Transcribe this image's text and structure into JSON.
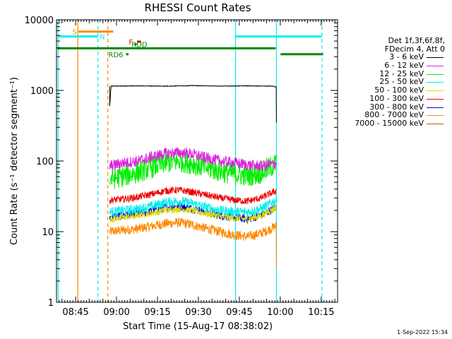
{
  "chart_data": {
    "type": "line",
    "title": "RHESSI Count Rates",
    "xlabel": "Start Time (15-Aug-17 08:38:02)",
    "ylabel": "Count Rate (s⁻¹ detector segment⁻¹)",
    "x_unit": "minutes after 08:38:02",
    "xlim": [
      0,
      103
    ],
    "ylim": [
      1,
      10000
    ],
    "yscale": "log",
    "x_ticks": [
      "08:45",
      "09:00",
      "09:15",
      "09:30",
      "09:45",
      "10:00",
      "10:15"
    ],
    "x_tick_minutes": [
      7,
      22,
      37,
      52,
      67,
      82,
      97
    ],
    "y_ticks": [
      "1",
      "10",
      "100",
      "1000",
      "10000"
    ],
    "legend": {
      "header_line1": "Det 1f,3f,6f,8f,",
      "header_line2": "FDecim 4, Att 0",
      "entries": [
        {
          "label": "3 - 6 keV",
          "color": "#000000"
        },
        {
          "label": "6 - 12 keV",
          "color": "#e020e0"
        },
        {
          "label": "12 - 25 keV",
          "color": "#00ee00"
        },
        {
          "label": "25 - 50 keV",
          "color": "#00eeee"
        },
        {
          "label": "50 - 100 keV",
          "color": "#dddd00"
        },
        {
          "label": "100 - 300 keV",
          "color": "#ee0000"
        },
        {
          "label": "300 - 800 keV",
          "color": "#0000dd"
        },
        {
          "label": "800 - 7000 keV",
          "color": "#ff8800"
        },
        {
          "label": "7000 - 15000 keV",
          "color": "#aa6600"
        }
      ]
    },
    "series": [
      {
        "name": "3 - 6 keV",
        "color": "#000000",
        "x": [
          19.5,
          20,
          30,
          40,
          50,
          60,
          70,
          79,
          80.5,
          80.6
        ],
        "y": [
          600,
          1150,
          1160,
          1150,
          1170,
          1150,
          1160,
          1150,
          1120,
          350
        ]
      },
      {
        "name": "6 - 12 keV",
        "color": "#e020e0",
        "x": [
          19.5,
          25,
          30,
          35,
          40,
          45,
          50,
          55,
          60,
          65,
          70,
          75,
          80.5
        ],
        "y": [
          85,
          95,
          100,
          115,
          128,
          132,
          125,
          110,
          100,
          95,
          88,
          85,
          92
        ]
      },
      {
        "name": "12 - 25 keV",
        "color": "#00ee00",
        "x": [
          19.5,
          25,
          30,
          35,
          40,
          45,
          50,
          55,
          60,
          65,
          70,
          75,
          80.5
        ],
        "y": [
          55,
          62,
          70,
          82,
          95,
          100,
          92,
          80,
          72,
          66,
          62,
          68,
          92
        ]
      },
      {
        "name": "25 - 50 keV",
        "color": "#00eeee",
        "x": [
          19.5,
          25,
          30,
          35,
          40,
          45,
          50,
          55,
          60,
          65,
          70,
          75,
          80.5
        ],
        "y": [
          19,
          20,
          21,
          23,
          26,
          27,
          25,
          22,
          20,
          19,
          19,
          21,
          28
        ]
      },
      {
        "name": "50 - 100 keV",
        "color": "#dddd00",
        "x": [
          19.5,
          25,
          30,
          35,
          40,
          45,
          50,
          55,
          60,
          65,
          70,
          75,
          80.5
        ],
        "y": [
          15,
          16,
          17,
          18.5,
          20,
          21,
          20,
          18,
          16.5,
          15.5,
          15,
          17,
          22
        ]
      },
      {
        "name": "100 - 300 keV",
        "color": "#ee0000",
        "x": [
          19.5,
          25,
          30,
          35,
          40,
          45,
          50,
          55,
          60,
          65,
          70,
          75,
          80.5
        ],
        "y": [
          28,
          29,
          31,
          34,
          38,
          39,
          36,
          33,
          30,
          28,
          27,
          30,
          38
        ]
      },
      {
        "name": "300 - 800 keV",
        "color": "#0000dd",
        "x": [
          19.5,
          25,
          30,
          35,
          40,
          45,
          50,
          55,
          60,
          65,
          70,
          75,
          80.5
        ],
        "y": [
          16,
          17,
          18,
          19.5,
          22,
          23,
          21,
          19,
          17,
          16,
          15,
          17,
          22
        ]
      },
      {
        "name": "800 - 7000 keV",
        "color": "#ff8800",
        "x": [
          19.5,
          25,
          30,
          35,
          40,
          45,
          50,
          55,
          60,
          65,
          70,
          75,
          80.5,
          80.6
        ],
        "y": [
          10,
          10.5,
          11,
          12,
          13,
          13.5,
          12.5,
          11,
          10,
          9,
          8.5,
          9.5,
          12,
          3
        ]
      },
      {
        "name": "7000 - 15000 keV",
        "color": "#aa6600",
        "x": [],
        "y": []
      }
    ],
    "flag_bars": [
      {
        "label": "S",
        "color": "#ff8800",
        "y": 6800,
        "x": [
          7.8,
          20.8
        ],
        "label_x": 5.8
      },
      {
        "label": "N",
        "color": "#00eeee",
        "y": 5800,
        "x": [
          0.6,
          15.2
        ],
        "label_x": 15.8
      },
      {
        "label": "",
        "color": "#00eeee",
        "y": 5800,
        "x": [
          65.5,
          97.2
        ]
      },
      {
        "label": "F",
        "color": "#ee0000",
        "y": 4900,
        "x": [
          29.5,
          31
        ],
        "label_x": 26.5
      },
      {
        "label": "RDD",
        "color": "#008800",
        "y": 4500,
        "x": [
          28.6,
          29.4
        ],
        "label_x": 27.5
      },
      {
        "label": "",
        "color": "#008800",
        "y": 3950,
        "x": [
          0.3,
          80.3
        ]
      },
      {
        "label": "RD6",
        "color": "#008800",
        "y": 3250,
        "x": [
          25.5,
          26.4
        ],
        "label_x": 19
      },
      {
        "label": "",
        "color": "#008800",
        "y": 3250,
        "x": [
          82.1,
          97.7
        ]
      }
    ],
    "vertical_markers": [
      {
        "x": 0.6,
        "color": "#00eeee",
        "style": "solid"
      },
      {
        "x": 7.8,
        "color": "#ff8800",
        "style": "solid"
      },
      {
        "x": 15.2,
        "color": "#00eeee",
        "style": "dashed"
      },
      {
        "x": 18.8,
        "color": "#ff8800",
        "style": "dashed"
      },
      {
        "x": 65.6,
        "color": "#00eeee",
        "style": "solid"
      },
      {
        "x": 80.6,
        "color": "#00eeee",
        "style": "solid"
      },
      {
        "x": 97.3,
        "color": "#00eeee",
        "style": "dashed"
      }
    ]
  },
  "timestamp": "1-Sep-2022 15:34"
}
